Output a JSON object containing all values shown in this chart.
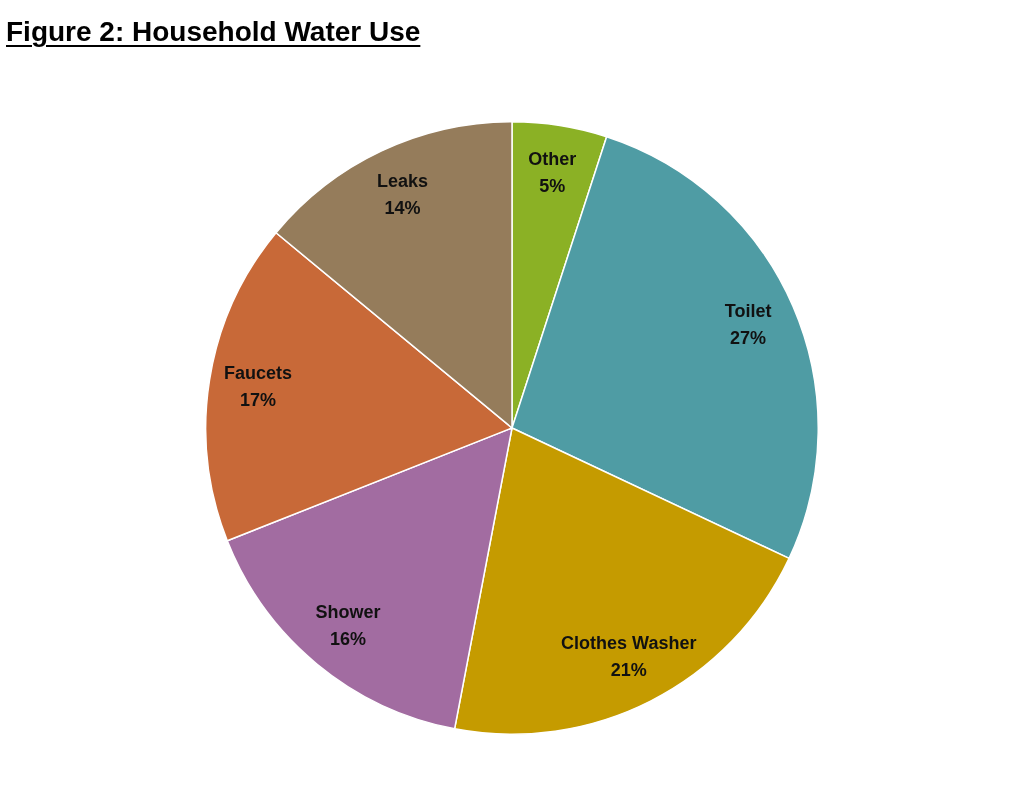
{
  "chart_data": {
    "type": "pie",
    "title": "Figure 2: Household Water Use",
    "categories": [
      "Other",
      "Toilet",
      "Clothes Washer",
      "Shower",
      "Faucets",
      "Leaks"
    ],
    "values": [
      5,
      27,
      21,
      16,
      17,
      14
    ],
    "colors": [
      "#8bb125",
      "#4f9ca4",
      "#c59b00",
      "#a26ca1",
      "#c86938",
      "#957c5b"
    ],
    "value_labels": [
      "5%",
      "27%",
      "21%",
      "16%",
      "17%",
      "14%"
    ],
    "legend": false
  }
}
